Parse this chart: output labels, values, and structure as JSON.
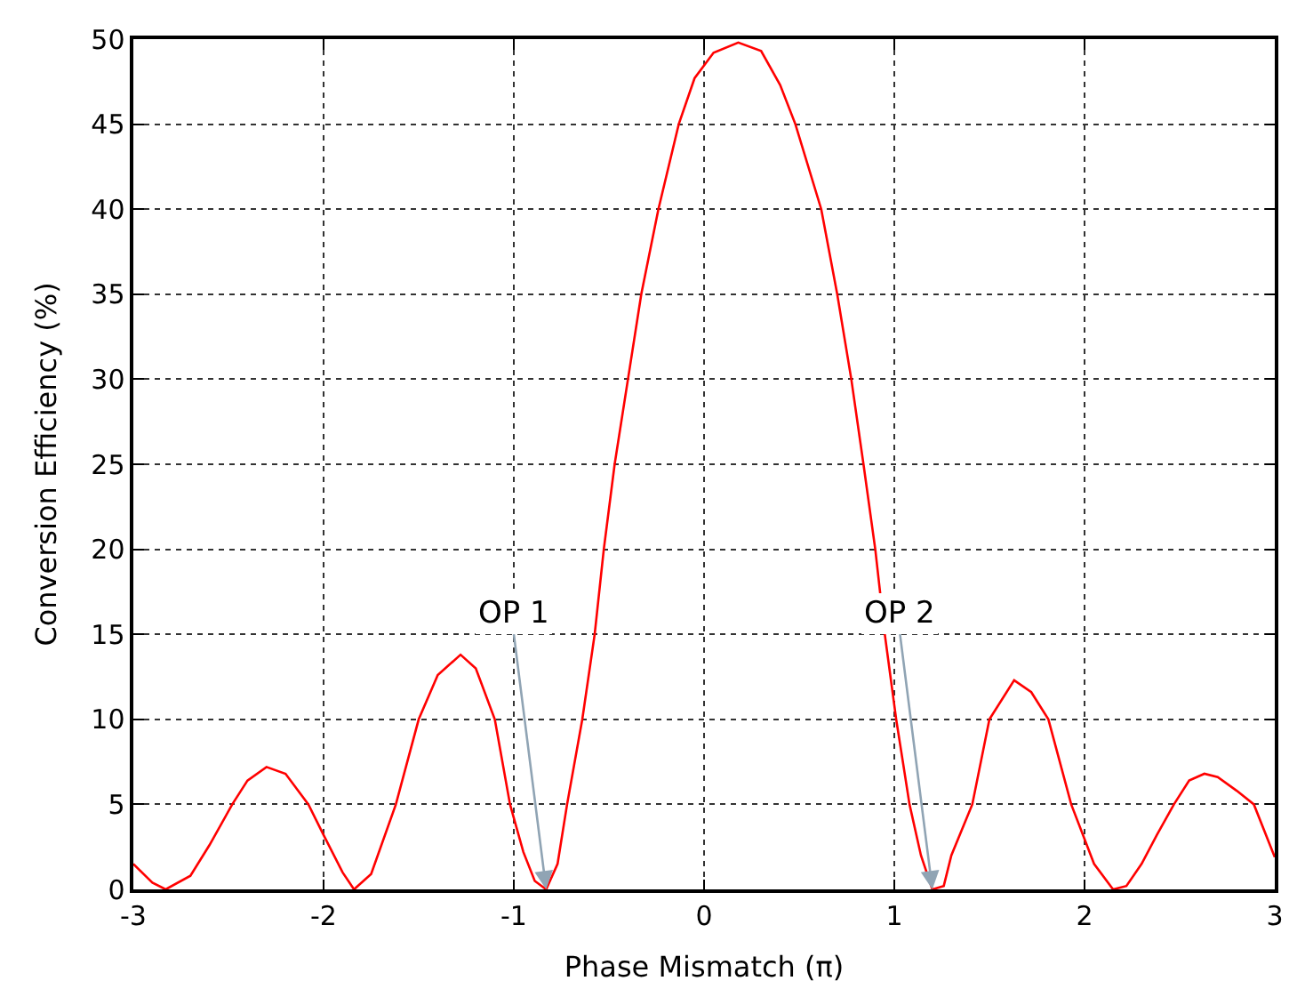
{
  "chart_data": {
    "type": "line",
    "xlabel": "Phase Mismatch (π)",
    "ylabel": "Conversion Efficiency (%)",
    "xlim": [
      -3,
      3
    ],
    "xticks": [
      -3,
      -2,
      -1,
      0,
      1,
      2,
      3
    ],
    "ylim": [
      0,
      50
    ],
    "yticks": [
      0,
      5,
      10,
      15,
      20,
      25,
      30,
      35,
      40,
      45,
      50
    ],
    "grid": true,
    "marker": "none",
    "line_style": "solid",
    "series": [
      {
        "color": "#ff0000",
        "x": [
          -3,
          -2.9,
          -2.83,
          -2.7,
          -2.6,
          -2.48,
          -2.4,
          -2.3,
          -2.2,
          -2.08,
          -2.0,
          -1.9,
          -1.84,
          -1.75,
          -1.62,
          -1.5,
          -1.4,
          -1.28,
          -1.2,
          -1.1,
          -1.02,
          -0.95,
          -0.89,
          -0.83,
          -0.77,
          -0.72,
          -0.64,
          -0.575,
          -0.527,
          -0.47,
          -0.4,
          -0.33,
          -0.24,
          -0.133,
          -0.05,
          0.05,
          0.18,
          0.3,
          0.4,
          0.48,
          0.616,
          0.7,
          0.774,
          0.838,
          0.9,
          0.95,
          1.01,
          1.08,
          1.14,
          1.2,
          1.26,
          1.3,
          1.41,
          1.5,
          1.63,
          1.72,
          1.81,
          1.93,
          2.05,
          2.15,
          2.22,
          2.3,
          2.38,
          2.47,
          2.55,
          2.63,
          2.7,
          2.8,
          2.89,
          3
        ],
        "values": [
          1.5,
          0.4,
          0,
          0.8,
          2.6,
          5,
          6.4,
          7.2,
          6.8,
          5,
          3.2,
          1.0,
          0,
          0.9,
          5,
          10,
          12.6,
          13.8,
          13.0,
          10,
          5,
          2.2,
          0.5,
          0,
          1.5,
          5,
          10,
          15,
          20,
          25,
          30,
          35,
          40,
          45,
          47.7,
          49.2,
          49.8,
          49.3,
          47.3,
          45,
          40,
          35,
          30,
          25,
          20,
          15,
          10,
          5,
          2,
          0,
          0.2,
          2,
          5,
          10,
          12.3,
          11.6,
          10,
          5,
          1.5,
          0,
          0.2,
          1.5,
          3.2,
          5,
          6.4,
          6.8,
          6.6,
          5.8,
          5,
          1.9
        ]
      }
    ],
    "annotations": [
      {
        "text": "OP 1",
        "x": -0.83,
        "y": 0
      },
      {
        "text": "OP 2",
        "x": 1.2,
        "y": 0
      }
    ]
  }
}
